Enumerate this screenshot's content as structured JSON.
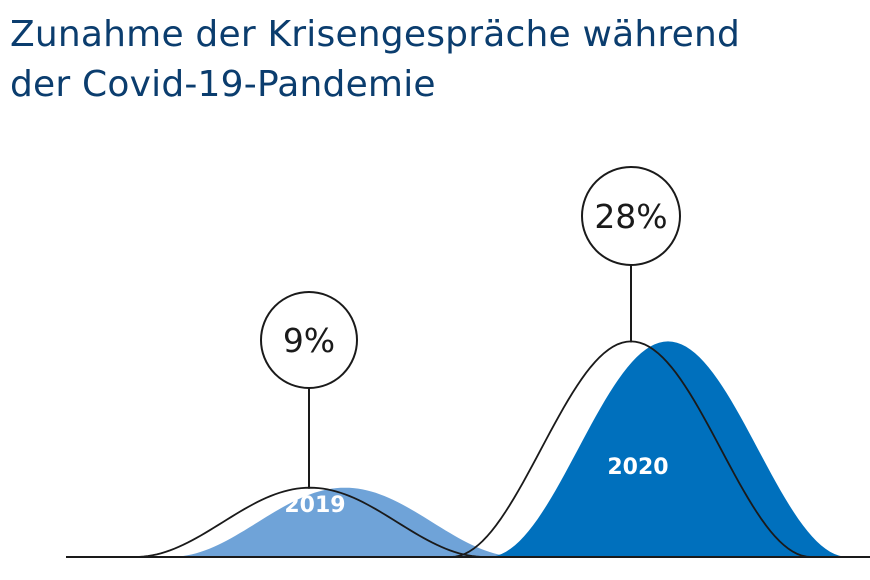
{
  "title_lines": [
    "Zunahme der Krisengespräche während",
    "der Covid-19-Pandemie"
  ],
  "colors": {
    "title": "#0b3d6e",
    "bar_2019": "#6fa3d8",
    "bar_2020": "#0070bd",
    "outline": "#1a1a1a"
  },
  "chart_data": {
    "type": "area",
    "title": "Zunahme der Krisengespräche während der Covid-19-Pandemie",
    "unit": "%",
    "ylim": [
      0,
      30
    ],
    "categories": [
      "2019",
      "2020"
    ],
    "values": [
      9,
      28
    ],
    "value_labels": [
      "9%",
      "28%"
    ],
    "grid": false,
    "legend": "none"
  }
}
